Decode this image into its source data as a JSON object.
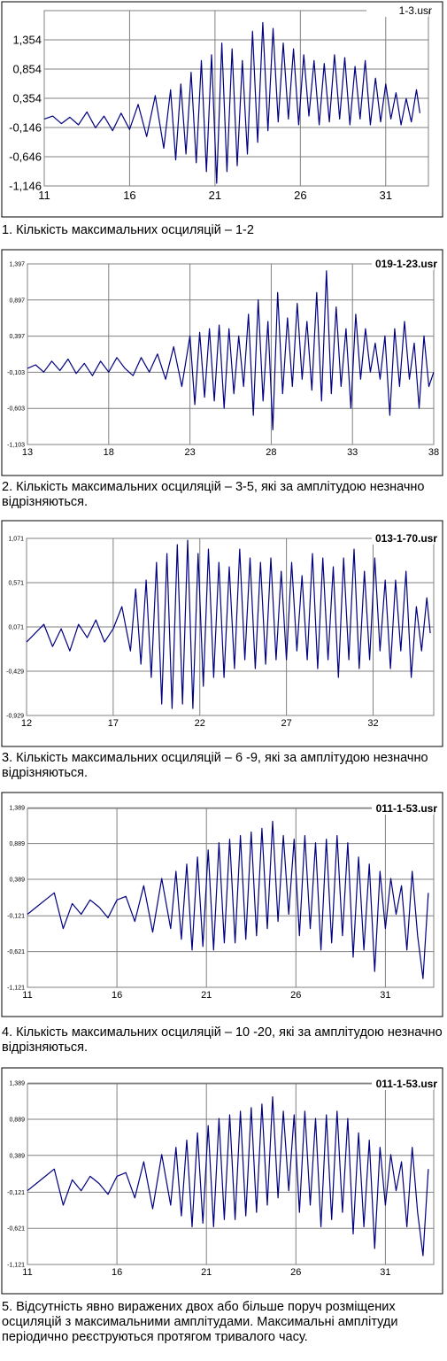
{
  "chart_data": [
    {
      "type": "line",
      "title": "1-3.usr",
      "xlim": [
        11,
        33.5
      ],
      "ylim": [
        -1.146,
        1.854
      ],
      "x_ticks": [
        "11",
        "16",
        "21",
        "26",
        "31"
      ],
      "y_ticks": [
        "1,354",
        "0,854",
        "0,354",
        "-0,146",
        "-0,646",
        "-1,146"
      ],
      "grid": true,
      "series_color": "#000080",
      "series": [
        {
          "x": [
            11,
            11.5,
            12,
            12.5,
            13,
            13.5,
            14,
            14.5,
            15,
            15.5,
            16,
            16.5,
            17,
            17.5,
            18,
            18.4,
            18.7,
            19,
            19.3,
            19.6,
            19.9,
            20.2,
            20.5,
            20.8,
            21.1,
            21.4,
            21.7,
            22,
            22.3,
            22.6,
            22.9,
            23.2,
            23.5,
            23.8,
            24.1,
            24.4,
            24.7,
            25,
            25.3,
            25.6,
            25.9,
            26.2,
            26.5,
            26.8,
            27.1,
            27.4,
            27.7,
            28,
            28.3,
            28.6,
            28.9,
            29.2,
            29.5,
            29.8,
            30.1,
            30.4,
            30.7,
            31,
            31.3,
            31.6,
            31.9,
            32.2,
            32.5,
            32.8,
            33
          ],
          "y": [
            0,
            0.05,
            -0.08,
            0.03,
            -0.1,
            0.12,
            -0.15,
            0.05,
            -0.2,
            0.1,
            -0.18,
            0.25,
            -0.3,
            0.4,
            -0.5,
            0.5,
            -0.7,
            0.6,
            -0.6,
            0.8,
            -0.75,
            1.0,
            -0.9,
            1.1,
            -1.1,
            1.3,
            -0.9,
            1.2,
            -0.8,
            1.0,
            -0.6,
            1.5,
            -0.4,
            1.65,
            -0.2,
            1.55,
            -0.05,
            1.3,
            0,
            1.2,
            -0.1,
            1.1,
            0.05,
            1.0,
            -0.1,
            0.95,
            -0.05,
            1.1,
            0,
            1.05,
            -0.1,
            0.9,
            0,
            1.0,
            -0.1,
            0.7,
            -0.05,
            0.6,
            0,
            0.45,
            -0.1,
            0.35,
            -0.05,
            0.5,
            0.1
          ]
        }
      ]
    },
    {
      "type": "line",
      "title": "019-1-23.usr",
      "xlim": [
        13,
        38
      ],
      "ylim": [
        -1.103,
        1.397
      ],
      "x_ticks": [
        "13",
        "18",
        "23",
        "28",
        "33",
        "38"
      ],
      "y_ticks": [
        "1,397",
        "0,897",
        "0,397",
        "-0,103",
        "-0,603",
        "-1,103"
      ],
      "grid": true,
      "series_color": "#000080",
      "series": [
        {
          "x": [
            13,
            13.5,
            14,
            14.5,
            15,
            15.5,
            16,
            16.5,
            17,
            17.5,
            18,
            18.5,
            19,
            19.5,
            20,
            20.5,
            21,
            21.5,
            22,
            22.5,
            23,
            23.3,
            23.6,
            23.9,
            24.2,
            24.5,
            24.8,
            25.1,
            25.4,
            25.7,
            26,
            26.3,
            26.6,
            26.9,
            27.2,
            27.5,
            27.8,
            28.1,
            28.4,
            28.7,
            29,
            29.3,
            29.6,
            29.9,
            30.2,
            30.5,
            30.8,
            31.1,
            31.4,
            31.7,
            32,
            32.3,
            32.6,
            32.9,
            33.2,
            33.5,
            33.8,
            34.1,
            34.4,
            34.7,
            35,
            35.3,
            35.6,
            35.9,
            36.2,
            36.5,
            36.8,
            37.1,
            37.4,
            37.7,
            38
          ],
          "y": [
            -0.05,
            0,
            -0.1,
            0.05,
            -0.08,
            0.08,
            -0.12,
            0.02,
            -0.15,
            0.05,
            -0.1,
            0.1,
            -0.05,
            -0.15,
            0.1,
            -0.1,
            0.15,
            -0.2,
            0.25,
            -0.3,
            0.4,
            -0.55,
            0.45,
            -0.45,
            0.5,
            -0.5,
            0.55,
            -0.6,
            0.5,
            -0.4,
            0.4,
            -0.3,
            0.7,
            -0.7,
            0.9,
            -0.5,
            0.6,
            -0.9,
            1.0,
            -0.4,
            0.65,
            -0.3,
            0.85,
            -0.2,
            0.6,
            -0.35,
            1.0,
            -0.5,
            1.3,
            -0.4,
            0.8,
            -0.3,
            0.5,
            -0.6,
            0.7,
            -0.2,
            0.5,
            -0.1,
            0.3,
            -0.2,
            0.4,
            -0.7,
            0.5,
            -0.3,
            0.6,
            -0.2,
            0.3,
            -0.6,
            0.4,
            -0.3,
            -0.1
          ]
        }
      ]
    },
    {
      "type": "line",
      "title": "013-1-70.usr",
      "xlim": [
        12,
        35.5
      ],
      "ylim": [
        -0.929,
        1.071
      ],
      "x_ticks": [
        "12",
        "17",
        "22",
        "27",
        "32"
      ],
      "y_ticks": [
        "1,071",
        "0,571",
        "0,071",
        "-0,429",
        "-0,929"
      ],
      "grid": true,
      "series_color": "#000080",
      "series": [
        {
          "x": [
            12,
            12.5,
            13,
            13.5,
            14,
            14.5,
            15,
            15.5,
            16,
            16.5,
            17,
            17.5,
            18,
            18.3,
            18.6,
            18.9,
            19.2,
            19.5,
            19.8,
            20.1,
            20.4,
            20.7,
            21,
            21.3,
            21.6,
            21.9,
            22.2,
            22.5,
            22.8,
            23.1,
            23.4,
            23.7,
            24,
            24.3,
            24.6,
            24.9,
            25.2,
            25.5,
            25.8,
            26.1,
            26.4,
            26.7,
            27,
            27.3,
            27.6,
            27.9,
            28.2,
            28.5,
            28.8,
            29.1,
            29.4,
            29.7,
            30,
            30.3,
            30.6,
            30.9,
            31.2,
            31.5,
            31.8,
            32.1,
            32.4,
            32.7,
            33,
            33.3,
            33.6,
            33.9,
            34.2,
            34.5,
            34.8,
            35.1,
            35.3
          ],
          "y": [
            -0.1,
            0,
            0.1,
            -0.15,
            0.05,
            -0.2,
            0.1,
            -0.05,
            0.15,
            -0.1,
            0.05,
            0.3,
            -0.2,
            0.5,
            -0.35,
            0.6,
            -0.5,
            0.8,
            -0.8,
            0.9,
            -0.85,
            1.0,
            -0.8,
            1.05,
            -0.85,
            0.9,
            -0.6,
            0.95,
            -0.5,
            0.8,
            -0.5,
            0.75,
            -0.4,
            0.95,
            -0.3,
            0.85,
            -0.4,
            0.8,
            -0.35,
            0.85,
            -0.3,
            0.7,
            -0.3,
            0.8,
            -0.2,
            0.65,
            -0.3,
            0.9,
            -0.4,
            0.85,
            -0.3,
            0.75,
            -0.5,
            0.85,
            -0.3,
            0.95,
            -0.4,
            0.7,
            -0.3,
            0.85,
            -0.2,
            0.6,
            -0.4,
            0.6,
            -0.2,
            0.7,
            -0.5,
            0.3,
            -0.2,
            0.4,
            0
          ]
        }
      ]
    },
    {
      "type": "line",
      "title": "011-1-53.usr",
      "xlim": [
        11,
        33.7
      ],
      "ylim": [
        -1.121,
        1.379
      ],
      "x_ticks": [
        "11",
        "16",
        "21",
        "26",
        "31"
      ],
      "y_ticks": [
        "1,389",
        "0,889",
        "0,389",
        "-0,121",
        "-0,621",
        "-1,121"
      ],
      "grid": true,
      "series_color": "#000080",
      "series": [
        {
          "x": [
            11,
            11.5,
            12,
            12.5,
            13,
            13.5,
            14,
            14.5,
            15,
            15.5,
            16,
            16.5,
            17,
            17.5,
            18,
            18.5,
            19,
            19.3,
            19.6,
            19.9,
            20.2,
            20.5,
            20.8,
            21.1,
            21.4,
            21.7,
            22,
            22.3,
            22.6,
            22.9,
            23.2,
            23.5,
            23.8,
            24.1,
            24.4,
            24.7,
            25,
            25.3,
            25.6,
            25.9,
            26.2,
            26.5,
            26.8,
            27.1,
            27.4,
            27.7,
            28,
            28.3,
            28.6,
            28.9,
            29.2,
            29.5,
            29.8,
            30.1,
            30.4,
            30.7,
            31,
            31.3,
            31.6,
            31.9,
            32.2,
            32.5,
            32.8,
            33.1,
            33.4
          ],
          "y": [
            -0.1,
            0,
            0.1,
            0.2,
            -0.3,
            0.05,
            -0.1,
            0.1,
            0,
            -0.15,
            0.1,
            0.15,
            -0.2,
            0.3,
            -0.35,
            0.4,
            -0.3,
            0.5,
            -0.45,
            0.6,
            -0.6,
            0.7,
            -0.55,
            0.8,
            -0.6,
            0.9,
            -0.5,
            0.95,
            -0.5,
            1.0,
            -0.45,
            1.05,
            -0.4,
            1.1,
            -0.3,
            1.2,
            -0.2,
            1.0,
            -0.1,
            0.95,
            -0.4,
            1.0,
            -0.3,
            0.9,
            -0.6,
            0.95,
            -0.5,
            1.0,
            -0.4,
            0.9,
            -0.7,
            0.7,
            -0.6,
            0.6,
            -0.9,
            0.5,
            -0.3,
            0.4,
            -0.1,
            0.3,
            -0.6,
            0.5,
            -0.4,
            -1.0,
            0.2
          ]
        }
      ]
    },
    {
      "type": "line",
      "title": "011-1-53.usr",
      "xlim": [
        11,
        33.7
      ],
      "ylim": [
        -1.121,
        1.379
      ],
      "x_ticks": [
        "11",
        "16",
        "21",
        "26",
        "31"
      ],
      "y_ticks": [
        "1,389",
        "0,889",
        "0,389",
        "-0,121",
        "-0,621",
        "-1,121"
      ],
      "grid": true,
      "series_color": "#000080",
      "series": [
        {
          "x": [
            11,
            11.5,
            12,
            12.5,
            13,
            13.5,
            14,
            14.5,
            15,
            15.5,
            16,
            16.5,
            17,
            17.5,
            18,
            18.5,
            19,
            19.3,
            19.6,
            19.9,
            20.2,
            20.5,
            20.8,
            21.1,
            21.4,
            21.7,
            22,
            22.3,
            22.6,
            22.9,
            23.2,
            23.5,
            23.8,
            24.1,
            24.4,
            24.7,
            25,
            25.3,
            25.6,
            25.9,
            26.2,
            26.5,
            26.8,
            27.1,
            27.4,
            27.7,
            28,
            28.3,
            28.6,
            28.9,
            29.2,
            29.5,
            29.8,
            30.1,
            30.4,
            30.7,
            31,
            31.3,
            31.6,
            31.9,
            32.2,
            32.5,
            32.8,
            33.1,
            33.4
          ],
          "y": [
            -0.1,
            0,
            0.1,
            0.2,
            -0.3,
            0.05,
            -0.1,
            0.1,
            0,
            -0.15,
            0.1,
            0.15,
            -0.2,
            0.3,
            -0.35,
            0.4,
            -0.3,
            0.5,
            -0.45,
            0.6,
            -0.6,
            0.7,
            -0.55,
            0.8,
            -0.6,
            0.9,
            -0.5,
            0.95,
            -0.5,
            1.0,
            -0.45,
            1.05,
            -0.4,
            1.1,
            -0.3,
            1.2,
            -0.2,
            1.0,
            -0.1,
            0.95,
            -0.4,
            1.0,
            -0.3,
            0.9,
            -0.6,
            0.95,
            -0.5,
            1.0,
            -0.4,
            0.9,
            -0.7,
            0.7,
            -0.6,
            0.6,
            -0.9,
            0.5,
            -0.3,
            0.4,
            -0.1,
            0.3,
            -0.6,
            0.5,
            -0.4,
            -1.0,
            0.2
          ]
        }
      ]
    }
  ],
  "captions": [
    "1. Кількість максимальних осциляцій – 1-2",
    "2. Кількість максимальних осциляцій – 3-5, які за амплітудою незначно відрізняються.",
    "3. Кількість максимальних осциляцій – 6 -9, які за амплітудою незначно відрізняються.",
    "4. Кількість максимальних осциляцій – 10 -20, які за амплітудою незначно відрізняються.",
    "5. Відсутність явно виражених двох або більше поруч розміщених осциляцій з максимальними амплітудами. Максимальні амплітуди періодично реєструються протягом тривалого часу."
  ]
}
